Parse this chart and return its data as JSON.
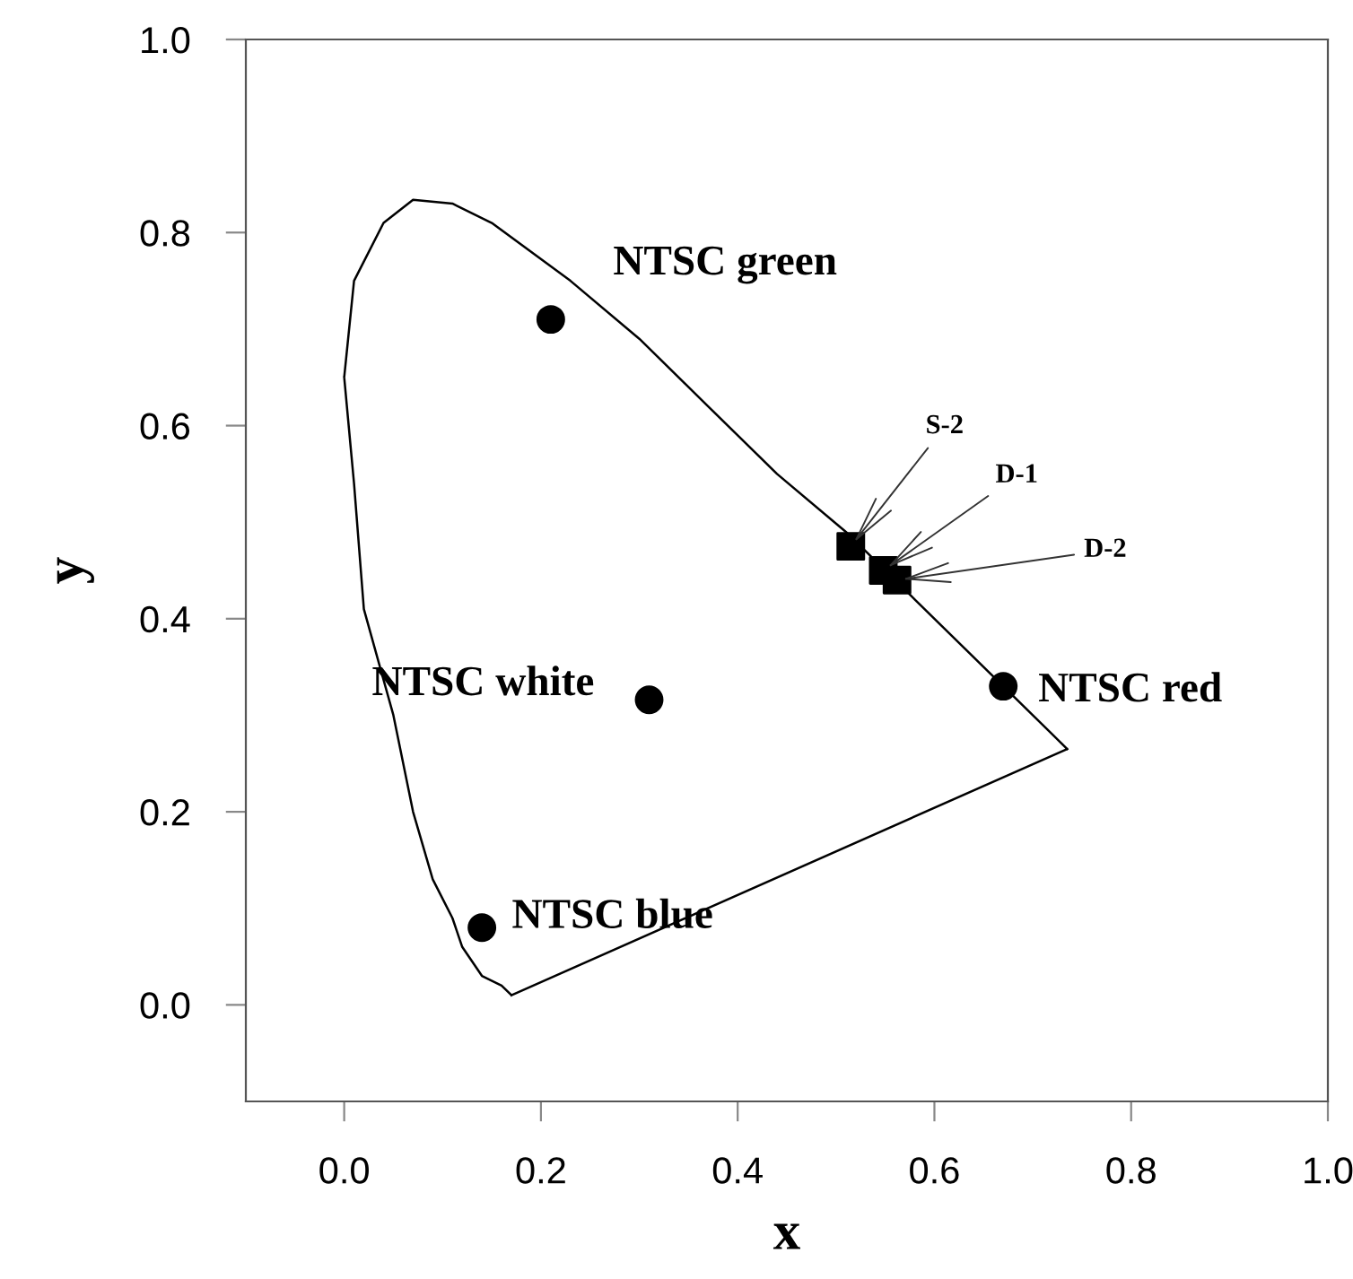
{
  "chart_data": {
    "type": "line",
    "xlabel": "x",
    "ylabel": "y",
    "xlim": [
      -0.1,
      1.0
    ],
    "ylim": [
      -0.1,
      1.0
    ],
    "xticks": [
      {
        "value": 0,
        "label": "0.0"
      },
      0.2,
      0.4,
      0.6,
      0.8,
      {
        "value": 1,
        "label": "1.0"
      }
    ],
    "yticks": [
      {
        "value": 0,
        "label": "0.0"
      },
      0.2,
      0.4,
      0.6,
      0.8,
      {
        "value": 1,
        "label": "1.0"
      }
    ],
    "series": [
      {
        "color": "#000000",
        "marker": "none",
        "line_style": "solid",
        "x": [
          0.0,
          0.01,
          0.04,
          0.07,
          0.11,
          0.15,
          0.23,
          0.3,
          0.37,
          0.44,
          0.51,
          0.58,
          0.63,
          0.67,
          0.69,
          0.72,
          0.735,
          null,
          0.17,
          0.735,
          null,
          0.0,
          0.01,
          0.02,
          0.05,
          0.07,
          0.09,
          0.11,
          0.12,
          0.14,
          0.16,
          0.17
        ],
        "values": [
          0.65,
          0.75,
          0.81,
          0.834,
          0.83,
          0.81,
          0.75,
          0.69,
          0.62,
          0.55,
          0.49,
          0.42,
          0.37,
          0.33,
          0.31,
          0.28,
          0.265,
          null,
          0.01,
          0.265,
          null,
          0.65,
          0.54,
          0.41,
          0.3,
          0.2,
          0.13,
          0.09,
          0.06,
          0.03,
          0.02,
          0.01
        ]
      },
      {
        "type": "scatter",
        "color": "#000000",
        "marker": "circle",
        "x": [
          0.21,
          0.67,
          0.14,
          0.31
        ],
        "values": [
          0.71,
          0.33,
          0.08,
          0.316
        ]
      },
      {
        "type": "scatter",
        "color": "#000000",
        "marker": "square",
        "x": [
          0.515,
          0.548,
          0.562
        ],
        "values": [
          0.475,
          0.45,
          0.44
        ]
      }
    ],
    "annotations": [
      {
        "text": "NTSC green",
        "x": 0.21,
        "y": 0.71
      },
      {
        "text": "NTSC red",
        "x": 0.67,
        "y": 0.33
      },
      {
        "text": "NTSC blue",
        "x": 0.14,
        "y": 0.08
      },
      {
        "text": "NTSC white",
        "x": 0.31,
        "y": 0.316
      },
      {
        "text": "S-2",
        "x": 0.515,
        "y": 0.475
      },
      {
        "text": "D-1",
        "x": 0.548,
        "y": 0.45
      },
      {
        "text": "D-2",
        "x": 0.562,
        "y": 0.44
      }
    ]
  }
}
